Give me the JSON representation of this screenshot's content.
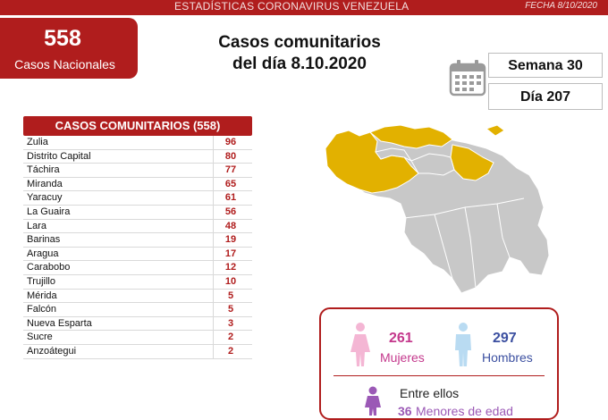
{
  "header": {
    "title": "ESTADÍSTICAS CORONAVIRUS VENEZUELA",
    "date": "FECHA 8/10/2020"
  },
  "national": {
    "count": "558",
    "label": "Casos Nacionales"
  },
  "headline": {
    "line1": "Casos comunitarios",
    "line2": "del día 8.10.2020"
  },
  "period": {
    "week": "Semana 30",
    "day": "Día 207"
  },
  "table": {
    "header": "CASOS COMUNITARIOS (558)",
    "rows": [
      {
        "state": "Zulia",
        "count": "96"
      },
      {
        "state": "Distrito Capital",
        "count": "80"
      },
      {
        "state": "Táchira",
        "count": "77"
      },
      {
        "state": "Miranda",
        "count": "65"
      },
      {
        "state": "Yaracuy",
        "count": "61"
      },
      {
        "state": "La Guaira",
        "count": "56"
      },
      {
        "state": "Lara",
        "count": "48"
      },
      {
        "state": "Barinas",
        "count": "19"
      },
      {
        "state": "Aragua",
        "count": "17"
      },
      {
        "state": "Carabobo",
        "count": "12"
      },
      {
        "state": "Trujillo",
        "count": "10"
      },
      {
        "state": "Mérida",
        "count": "5"
      },
      {
        "state": "Falcón",
        "count": "5"
      },
      {
        "state": "Nueva Esparta",
        "count": "3"
      },
      {
        "state": "Sucre",
        "count": "2"
      },
      {
        "state": "Anzoátegui",
        "count": "2"
      }
    ]
  },
  "demographics": {
    "women_count": "261",
    "women_label": "Mujeres",
    "men_count": "297",
    "men_label": "Hombres",
    "among_them": "Entre ellos",
    "minors_count": "36",
    "minors_label": "Menores de edad"
  },
  "colors": {
    "brand_red": "#b01d1d",
    "affected_state": "#e2b100",
    "unaffected_state": "#c8c8c8",
    "female": "#c4388c",
    "male": "#3b4fa0",
    "minor": "#9b59b6"
  },
  "icons": {
    "calendar": "calendar-icon",
    "female": "female-person-icon",
    "male": "male-person-icon",
    "child": "child-icon"
  }
}
